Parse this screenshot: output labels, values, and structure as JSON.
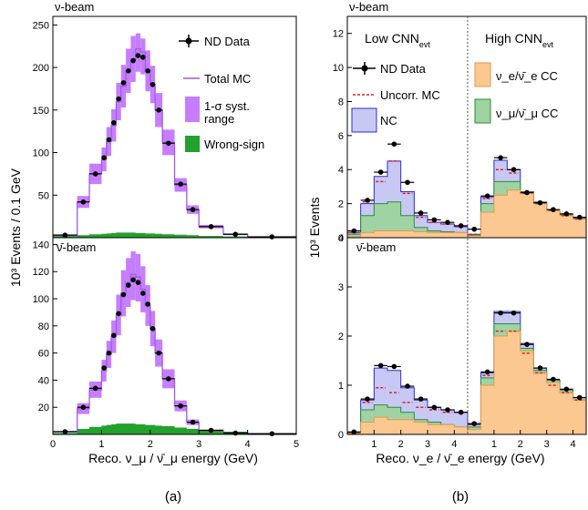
{
  "colors": {
    "mc_line": "#9b5de5",
    "syst_band": "#c77dff",
    "wrong_sign": "#22a12c",
    "nc_fill": "#c8c8f5",
    "nc_edge": "#2c2cd0",
    "numu_fill": "#9fd3a3",
    "numu_edge": "#2e8b3a",
    "nue_fill": "#fbc892",
    "nue_edge": "#e09a50",
    "uncorr": "#e02020",
    "data": "#000000"
  },
  "panel_a": {
    "top_beam": "ν-beam",
    "bottom_beam": "ν̄-beam",
    "ylabel": "10³ Events / 0.1 GeV",
    "xlabel": "Reco. ν_μ / ν̄_μ energy (GeV)",
    "caption": "(a)",
    "legend": {
      "data": "ND Data",
      "mc": "Total MC",
      "syst_line1": "1-σ syst.",
      "syst_line2": "range",
      "wrong_sign": "Wrong-sign"
    }
  },
  "panel_b": {
    "top_beam": "ν-beam",
    "bottom_beam": "ν̄-beam",
    "ylabel": "10³ Events",
    "xlabel": "Reco. ν_e / ν̄_e energy (GeV)",
    "caption": "(b)",
    "low_label": "Low CNN",
    "high_label": "High CNN",
    "cnn_sub": "evt",
    "legend": {
      "data": "ND Data",
      "uncorr": "Uncorr. MC",
      "nc": "NC",
      "nue": "ν_e/ν̄_e CC",
      "numu": "ν_μ/ν̄_μ CC"
    }
  },
  "chart_data": [
    {
      "type": "line",
      "panel": "a-top",
      "title": "ν-beam",
      "ylim": [
        0,
        260
      ],
      "xlim": [
        0,
        5
      ],
      "yticks": [
        50,
        100,
        150,
        200,
        250
      ],
      "bin_edges": [
        0,
        0.5,
        0.75,
        1.0,
        1.1,
        1.2,
        1.3,
        1.4,
        1.5,
        1.6,
        1.7,
        1.8,
        1.9,
        2.0,
        2.1,
        2.25,
        2.5,
        2.75,
        3.0,
        3.5,
        4.0,
        5.0
      ],
      "series": [
        {
          "name": "ND Data",
          "values": [
            3,
            42,
            75,
            94,
            115,
            135,
            163,
            182,
            196,
            208,
            214,
            212,
            196,
            180,
            150,
            111,
            63,
            33,
            13,
            4,
            1
          ]
        },
        {
          "name": "Total MC",
          "values": [
            3,
            42,
            75,
            92,
            113,
            132,
            160,
            178,
            196,
            210,
            222,
            218,
            196,
            180,
            150,
            112,
            62,
            33,
            13,
            4,
            1
          ]
        },
        {
          "name": "1-σ syst. range",
          "low": [
            2,
            35,
            63,
            78,
            96,
            113,
            138,
            153,
            170,
            183,
            195,
            192,
            172,
            158,
            130,
            97,
            54,
            28,
            11,
            3,
            1
          ],
          "high": [
            4,
            49,
            87,
            106,
            130,
            151,
            182,
            203,
            222,
            237,
            240,
            234,
            220,
            202,
            170,
            127,
            70,
            38,
            15,
            5,
            1
          ]
        },
        {
          "name": "Wrong-sign",
          "values": [
            2,
            3,
            4,
            4.5,
            5,
            5.5,
            6,
            6,
            6,
            6,
            5.5,
            5.5,
            5,
            5,
            4.5,
            4,
            3.5,
            3,
            2,
            1.5,
            1
          ]
        }
      ]
    },
    {
      "type": "line",
      "panel": "a-bottom",
      "title": "ν̄-beam",
      "ylim": [
        0,
        145
      ],
      "xlim": [
        0,
        5
      ],
      "xticks": [
        0,
        1,
        2,
        3,
        4,
        5
      ],
      "yticks": [
        20,
        40,
        60,
        80,
        100,
        120,
        140
      ],
      "bin_edges": [
        0,
        0.5,
        0.75,
        1.0,
        1.1,
        1.2,
        1.3,
        1.4,
        1.5,
        1.6,
        1.7,
        1.8,
        1.9,
        2.0,
        2.1,
        2.25,
        2.5,
        2.75,
        3.0,
        3.5,
        4.0,
        5.0
      ],
      "series": [
        {
          "name": "ND Data",
          "values": [
            2,
            20,
            34,
            49,
            60,
            73,
            89,
            103,
            110,
            114,
            112,
            104,
            96,
            78,
            60,
            41,
            21,
            9,
            3,
            1,
            0.5
          ]
        },
        {
          "name": "Total MC",
          "values": [
            2,
            19,
            33,
            47,
            59,
            72,
            88,
            104,
            112,
            118,
            116,
            107,
            95,
            78,
            60,
            41,
            21,
            9,
            3,
            1,
            0.5
          ]
        },
        {
          "name": "1-σ syst. range",
          "low": [
            1.5,
            15,
            27,
            39,
            49,
            60,
            73,
            87,
            94,
            99,
            98,
            90,
            80,
            65,
            50,
            34,
            17,
            7,
            2.5,
            1,
            0.4
          ],
          "high": [
            2.5,
            23,
            39,
            55,
            69,
            84,
            103,
            121,
            130,
            135,
            133,
            124,
            110,
            91,
            70,
            48,
            25,
            11,
            3.5,
            1.2,
            0.6
          ]
        },
        {
          "name": "Wrong-sign",
          "values": [
            1,
            4,
            5.5,
            6.5,
            7,
            7.5,
            8,
            8,
            8,
            8,
            7.5,
            7.5,
            7,
            7,
            6.5,
            6,
            5,
            4,
            3,
            2,
            1
          ]
        }
      ]
    },
    {
      "type": "area",
      "panel": "b-top",
      "title": "ν-beam",
      "ylim": [
        0,
        13
      ],
      "yticks": [
        0,
        2,
        4,
        6,
        8,
        10,
        12
      ],
      "xticks": [
        1,
        2,
        3,
        4
      ],
      "low_cnn": {
        "bin_edges": [
          0,
          0.5,
          1.0,
          1.5,
          2.0,
          2.5,
          3.0,
          3.5,
          4.0,
          4.5
        ],
        "nue": [
          0.05,
          0.3,
          0.4,
          0.4,
          0.4,
          0.35,
          0.3,
          0.3,
          0.3
        ],
        "numu": [
          0.2,
          1.3,
          2.0,
          2.1,
          1.3,
          0.6,
          0.4,
          0.35,
          0.3
        ],
        "nc": [
          0.3,
          2.0,
          3.6,
          4.5,
          2.7,
          1.3,
          0.9,
          0.8,
          0.65
        ],
        "uncorr": [
          0.3,
          2.1,
          3.3,
          4.5,
          2.6,
          1.2,
          0.9,
          0.8,
          0.65
        ],
        "data": [
          0.4,
          2.2,
          3.85,
          5.5,
          3.25,
          1.45,
          1.05,
          0.9,
          0.7
        ]
      },
      "high_cnn": {
        "bin_edges": [
          0,
          0.5,
          1.0,
          1.5,
          2.0,
          2.5,
          3.0,
          3.5,
          4.0,
          4.5
        ],
        "nue": [
          0.1,
          1.5,
          2.5,
          2.8,
          2.6,
          2.0,
          1.6,
          1.3,
          1.1
        ],
        "numu": [
          0.15,
          2.0,
          3.3,
          3.3,
          2.7,
          2.1,
          1.6,
          1.35,
          1.15
        ],
        "nc": [
          0.2,
          2.4,
          4.55,
          4.0,
          2.7,
          2.1,
          1.6,
          1.35,
          1.15
        ],
        "uncorr": [
          0.2,
          2.3,
          4.0,
          3.8,
          2.6,
          2.0,
          1.6,
          1.3,
          1.1
        ],
        "data": [
          0.5,
          2.45,
          4.7,
          4.0,
          2.65,
          2.05,
          1.65,
          1.4,
          1.2
        ]
      }
    },
    {
      "type": "area",
      "panel": "b-bottom",
      "title": "ν̄-beam",
      "ylim": [
        0,
        4
      ],
      "yticks": [
        0,
        1,
        2,
        3,
        4
      ],
      "xticks": [
        1,
        2,
        3,
        4
      ],
      "low_cnn": {
        "bin_edges": [
          0,
          0.5,
          1.0,
          1.5,
          2.0,
          2.5,
          3.0,
          3.5,
          4.0,
          4.5
        ],
        "nue": [
          0.02,
          0.25,
          0.35,
          0.3,
          0.3,
          0.25,
          0.2,
          0.2,
          0.15
        ],
        "numu": [
          0.03,
          0.5,
          0.6,
          0.55,
          0.45,
          0.3,
          0.25,
          0.2,
          0.15
        ],
        "nc": [
          0.04,
          0.7,
          1.35,
          1.3,
          0.95,
          0.7,
          0.55,
          0.5,
          0.45
        ],
        "uncorr": [
          0.04,
          0.65,
          0.95,
          0.85,
          0.65,
          0.55,
          0.5,
          0.45,
          0.45
        ],
        "data": [
          0.05,
          0.72,
          1.4,
          1.38,
          0.98,
          0.72,
          0.55,
          0.5,
          0.45
        ]
      },
      "high_cnn": {
        "bin_edges": [
          0,
          0.5,
          1.0,
          1.5,
          2.0,
          2.5,
          3.0,
          3.5,
          4.0,
          4.5
        ],
        "nue": [
          0.1,
          1.0,
          2.0,
          2.1,
          1.7,
          1.25,
          1.05,
          0.85,
          0.7
        ],
        "numu": [
          0.15,
          1.15,
          2.25,
          2.25,
          1.75,
          1.3,
          1.1,
          0.9,
          0.75
        ],
        "nc": [
          0.2,
          1.25,
          2.5,
          2.5,
          1.85,
          1.35,
          1.1,
          0.9,
          0.75
        ],
        "uncorr": [
          0.2,
          1.2,
          2.1,
          2.1,
          1.65,
          1.25,
          1.0,
          0.85,
          0.7
        ],
        "data": [
          0.22,
          1.27,
          2.47,
          2.47,
          1.83,
          1.35,
          1.12,
          0.92,
          0.75
        ]
      }
    }
  ]
}
